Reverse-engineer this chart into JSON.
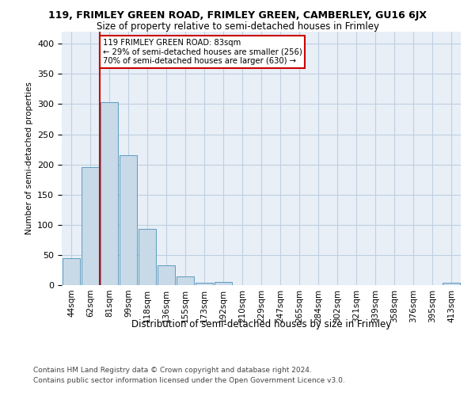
{
  "title_line1": "119, FRIMLEY GREEN ROAD, FRIMLEY GREEN, CAMBERLEY, GU16 6JX",
  "title_line2": "Size of property relative to semi-detached houses in Frimley",
  "xlabel": "Distribution of semi-detached houses by size in Frimley",
  "ylabel": "Number of semi-detached properties",
  "footer_line1": "Contains HM Land Registry data © Crown copyright and database right 2024.",
  "footer_line2": "Contains public sector information licensed under the Open Government Licence v3.0.",
  "categories": [
    "44sqm",
    "62sqm",
    "81sqm",
    "99sqm",
    "118sqm",
    "136sqm",
    "155sqm",
    "173sqm",
    "192sqm",
    "210sqm",
    "229sqm",
    "247sqm",
    "265sqm",
    "284sqm",
    "302sqm",
    "321sqm",
    "339sqm",
    "358sqm",
    "376sqm",
    "395sqm",
    "413sqm"
  ],
  "values": [
    44,
    195,
    303,
    215,
    93,
    33,
    15,
    4,
    5,
    0,
    0,
    0,
    0,
    0,
    0,
    0,
    0,
    0,
    0,
    0,
    4
  ],
  "bar_color": "#c8d9e8",
  "bar_edge_color": "#5b9bbf",
  "grid_color": "#c0cfe0",
  "background_color": "#e8eff7",
  "property_line_x": 1.5,
  "property_label": "119 FRIMLEY GREEN ROAD: 83sqm",
  "pct_smaller": "29% of semi-detached houses are smaller (256)",
  "pct_larger": "70% of semi-detached houses are larger (630)",
  "annotation_box_facecolor": "#ffffff",
  "annotation_box_edgecolor": "#cc0000",
  "property_line_color": "#cc0000",
  "ylim": [
    0,
    420
  ],
  "yticks": [
    0,
    50,
    100,
    150,
    200,
    250,
    300,
    350,
    400
  ]
}
